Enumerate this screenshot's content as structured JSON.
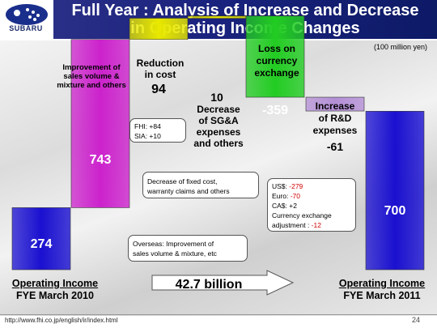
{
  "brand": {
    "name": "SUBARU"
  },
  "title": {
    "line1": "Full Year : Analysis of Increase and Decrease",
    "line2": "in Operating Income Changes"
  },
  "unit_note": "(100 million yen)",
  "chart_data": {
    "type": "waterfall",
    "steps": [
      {
        "key": "start",
        "value": 274,
        "label": "274",
        "kind": "total",
        "color": "#1a10d0",
        "caption_line1": "Operating Income",
        "caption_line2": "FYE March 2010"
      },
      {
        "key": "volume",
        "value": 743,
        "label": "743",
        "kind": "delta",
        "color": "#cc22cc",
        "caption_lines": [
          "Improvement of",
          "sales volume &",
          "mixture and others"
        ]
      },
      {
        "key": "cost",
        "value": 94,
        "label": "94",
        "kind": "delta",
        "color": "#e8e800",
        "caption_lines": [
          "Reduction",
          "in cost"
        ]
      },
      {
        "key": "sga",
        "value": 10,
        "label": "10",
        "kind": "delta",
        "color": "#e8e800",
        "caption_lines": [
          "Decrease",
          "of SG&A",
          "expenses",
          "and others"
        ]
      },
      {
        "key": "fx",
        "value": -359,
        "label": "-359",
        "kind": "delta",
        "color": "#22cc22",
        "caption_lines": [
          "Loss on",
          "currency",
          "exchange"
        ]
      },
      {
        "key": "rnd",
        "value": -61,
        "label": "-61",
        "kind": "delta",
        "color": "#b48fd6",
        "caption_lines": [
          "Increase",
          "of R&D",
          "expenses"
        ]
      },
      {
        "key": "end",
        "value": 700,
        "label": "700",
        "kind": "total",
        "color": "#1a10d0",
        "caption_line1": "Operating Income",
        "caption_line2": "FYE March 2011"
      }
    ],
    "arrow_label": "42.7 billion"
  },
  "callouts": {
    "cost_detail": {
      "line1": "FHI: +84",
      "line2": "SIA: +10"
    },
    "sga_detail": {
      "line1": "Decrease of fixed cost,",
      "line2": "warranty claims and others"
    },
    "volume_detail": {
      "line1": "Overseas: Improvement of",
      "line2": "sales volume & mixture, etc"
    },
    "fx_detail": {
      "usd_label": "US$: ",
      "usd_value": "-279",
      "eur_label": "Euro: ",
      "eur_value": "-70",
      "cad": "CA$: +2",
      "adj_line1": "Currency exchange",
      "adj_label": "adjustment : ",
      "adj_value": "-12"
    }
  },
  "footer": {
    "url": "http://www.fhi.co.jp/english/ir/index.html",
    "page": "24"
  }
}
